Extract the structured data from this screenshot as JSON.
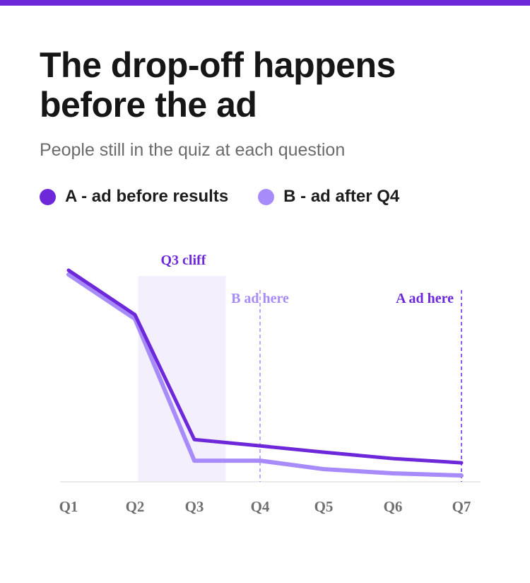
{
  "header": {
    "title": "The drop-off happens before the ad",
    "subtitle": "People still in the quiz at each question",
    "accent_color": "#6d28d9"
  },
  "legend": [
    {
      "label": "A - ad before results",
      "color": "#6d28d9"
    },
    {
      "label": "B - ad after Q4",
      "color": "#a78bfa"
    }
  ],
  "chart_data": {
    "type": "line",
    "title": "The drop-off happens before the ad",
    "subtitle": "People still in the quiz at each question",
    "categories": [
      "Q1",
      "Q2",
      "Q3",
      "Q4",
      "Q5",
      "Q6",
      "Q7"
    ],
    "ylim": [
      0,
      100
    ],
    "y_axis_shown": false,
    "grid": false,
    "legend_position": "top-left",
    "series": [
      {
        "name": "A - ad before results",
        "color": "#6d28d9",
        "values": [
          100,
          79,
          20,
          17,
          14,
          11,
          9
        ]
      },
      {
        "name": "B - ad after Q4",
        "color": "#a78bfa",
        "values": [
          98,
          77,
          10,
          10,
          6,
          4,
          3
        ]
      }
    ],
    "annotations": [
      {
        "type": "band",
        "from": 2.6,
        "to": 3.5,
        "label": "Q3 cliff",
        "color": "#f3effc",
        "label_color": "#6d28d9"
      },
      {
        "type": "vline",
        "at": 4,
        "label": "B ad here",
        "color": "#a78bfa",
        "label_side": "left"
      },
      {
        "type": "vline",
        "at": 7,
        "label": "A ad here",
        "color": "#6d28d9",
        "label_side": "left"
      }
    ]
  }
}
